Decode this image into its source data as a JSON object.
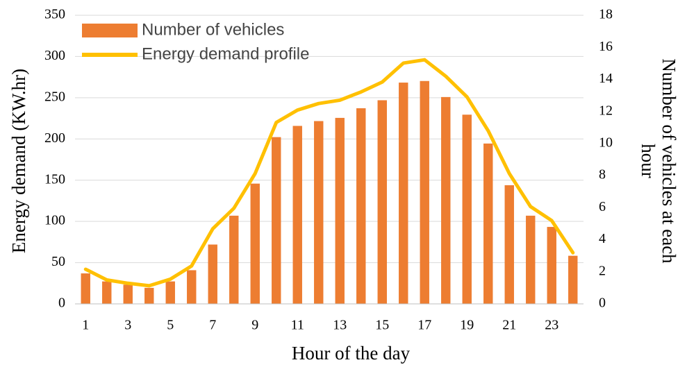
{
  "chart_data": {
    "type": "bar_line",
    "xlabel": "Hour of the day",
    "ylabel": "Energy demand  (KW.hr)",
    "y2label": [
      "Number of vehicles at each",
      "hour"
    ],
    "categories": [
      1,
      null,
      3,
      null,
      5,
      null,
      7,
      null,
      9,
      null,
      11,
      null,
      13,
      null,
      15,
      null,
      17,
      null,
      19,
      null,
      21,
      null,
      23,
      null
    ],
    "series": [
      {
        "name": "Number of vehicles",
        "type": "bar",
        "axis": "y2",
        "color": "#ed7d31",
        "values": [
          1.9,
          1.4,
          1.2,
          1.0,
          1.4,
          2.1,
          3.7,
          5.5,
          7.5,
          10.4,
          11.1,
          11.4,
          11.6,
          12.2,
          12.7,
          13.8,
          13.9,
          12.9,
          11.8,
          10.0,
          7.4,
          5.5,
          4.8,
          3.0
        ]
      },
      {
        "name": "Energy demand profile",
        "type": "line",
        "color": "#ffc000",
        "values": [
          42,
          29,
          25,
          22,
          30,
          46,
          91,
          116,
          158,
          220,
          235,
          243,
          247,
          257,
          269,
          292,
          296,
          276,
          251,
          210,
          158,
          118,
          101,
          62
        ]
      }
    ],
    "ylim": [
      0,
      350
    ],
    "yticks": [
      0,
      50,
      100,
      150,
      200,
      250,
      300,
      350
    ],
    "y2lim": [
      0,
      18
    ],
    "y2ticks": [
      0,
      2,
      4,
      6,
      8,
      10,
      12,
      14,
      16,
      18
    ],
    "grid": true,
    "legend": "upper left"
  }
}
